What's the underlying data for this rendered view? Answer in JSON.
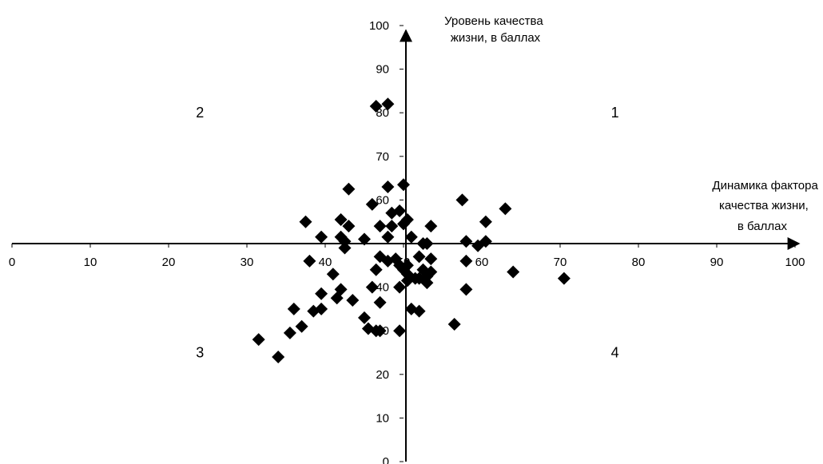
{
  "chart_data": {
    "type": "scatter",
    "title": "",
    "ylabel_lines": [
      "Уровень качества",
      "жизни, в баллах"
    ],
    "xlabel_lines": [
      "Динамика фактора",
      "качества жизни,",
      "в баллах"
    ],
    "xlim": [
      0,
      100
    ],
    "ylim": [
      0,
      100
    ],
    "x_ticks": [
      0,
      10,
      20,
      30,
      40,
      50,
      60,
      70,
      80,
      90,
      100
    ],
    "y_ticks": [
      0,
      10,
      20,
      30,
      40,
      50,
      60,
      70,
      80,
      90,
      100
    ],
    "axes_cross_at": [
      50,
      50
    ],
    "grid": false,
    "marker": "diamond",
    "marker_color": "#000000",
    "quadrant_labels": [
      {
        "text": "1",
        "x": 77,
        "y": 80
      },
      {
        "text": "2",
        "x": 24,
        "y": 80
      },
      {
        "text": "3",
        "x": 24,
        "y": 25
      },
      {
        "text": "4",
        "x": 77,
        "y": 25
      }
    ],
    "points": [
      [
        46.5,
        81.5
      ],
      [
        48,
        82
      ],
      [
        43,
        62.5
      ],
      [
        48,
        63
      ],
      [
        50,
        63.5
      ],
      [
        57.5,
        60
      ],
      [
        63,
        58
      ],
      [
        46,
        59
      ],
      [
        48.5,
        57
      ],
      [
        49.5,
        57.5
      ],
      [
        53.5,
        54
      ],
      [
        60.5,
        55
      ],
      [
        37.5,
        55
      ],
      [
        42,
        55.5
      ],
      [
        43,
        54
      ],
      [
        47,
        54
      ],
      [
        48.5,
        54
      ],
      [
        50,
        54.5
      ],
      [
        50.5,
        55.5
      ],
      [
        39.5,
        51.5
      ],
      [
        42,
        51.5
      ],
      [
        42.5,
        50.5
      ],
      [
        45,
        51
      ],
      [
        48,
        51.5
      ],
      [
        51,
        51.5
      ],
      [
        42.5,
        49
      ],
      [
        52.5,
        50
      ],
      [
        53,
        50
      ],
      [
        58,
        50.5
      ],
      [
        59.5,
        49.5
      ],
      [
        60.5,
        50.5
      ],
      [
        38,
        46
      ],
      [
        41,
        43
      ],
      [
        47,
        47
      ],
      [
        48,
        46
      ],
      [
        49,
        46.5
      ],
      [
        49.5,
        45
      ],
      [
        50,
        44
      ],
      [
        50.5,
        45
      ],
      [
        51.5,
        42
      ],
      [
        52,
        47
      ],
      [
        52.5,
        44
      ],
      [
        53.5,
        46.5
      ],
      [
        53.5,
        43.5
      ],
      [
        53,
        41
      ],
      [
        58,
        46
      ],
      [
        64,
        43.5
      ],
      [
        70.5,
        42
      ],
      [
        50.5,
        43
      ],
      [
        52,
        42
      ],
      [
        53,
        42.5
      ],
      [
        39.5,
        38.5
      ],
      [
        42,
        39.5
      ],
      [
        41.5,
        37.5
      ],
      [
        43.5,
        37
      ],
      [
        46,
        40
      ],
      [
        46.5,
        44
      ],
      [
        49.5,
        40
      ],
      [
        50.5,
        41.5
      ],
      [
        58,
        39.5
      ],
      [
        36,
        35
      ],
      [
        38.5,
        34.5
      ],
      [
        39.5,
        35
      ],
      [
        47,
        36.5
      ],
      [
        51,
        35
      ],
      [
        52,
        34.5
      ],
      [
        45,
        33
      ],
      [
        45.5,
        30.5
      ],
      [
        46.5,
        30
      ],
      [
        47,
        30
      ],
      [
        49.5,
        30
      ],
      [
        56.5,
        31.5
      ],
      [
        35.5,
        29.5
      ],
      [
        37,
        31
      ],
      [
        31.5,
        28
      ],
      [
        34,
        24
      ]
    ]
  }
}
